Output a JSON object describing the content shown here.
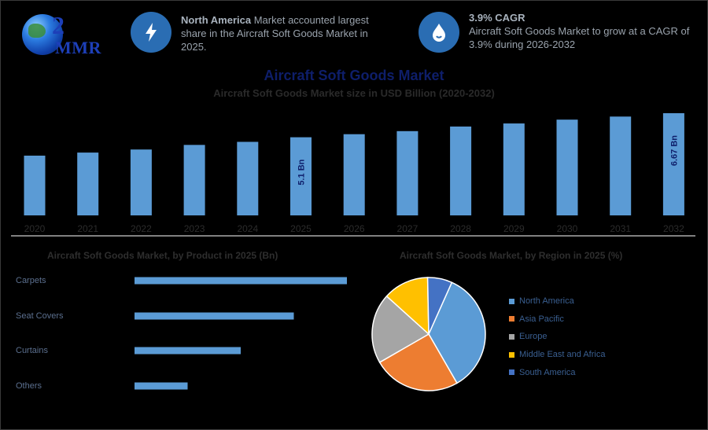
{
  "logo": {
    "text": "MMR",
    "mark": "2"
  },
  "info_cards": [
    {
      "icon": "lightning-icon",
      "highlight": "North America",
      "text": " Market accounted largest share in the Aircraft Soft Goods Market in 2025."
    },
    {
      "icon": "growth-drop-icon",
      "highlight": "3.9% CAGR",
      "text": "Aircraft Soft Goods Market to grow at a CAGR of 3.9% during 2026-2032"
    }
  ],
  "colors": {
    "bar": "#5b9bd5",
    "icon_circle": "#2a6db3",
    "title": "#0e1e6a",
    "axis": "#ffffff"
  },
  "chart_data": [
    {
      "type": "bar",
      "title": "Aircraft Soft Goods Market",
      "subtitle": "Aircraft Soft Goods Market size in USD Billion (2020-2032)",
      "categories": [
        "2020",
        "2021",
        "2022",
        "2023",
        "2024",
        "2025",
        "2026",
        "2027",
        "2028",
        "2029",
        "2030",
        "2031",
        "2032"
      ],
      "values": [
        3.9,
        4.1,
        4.3,
        4.6,
        4.8,
        5.1,
        5.3,
        5.5,
        5.8,
        6.0,
        6.25,
        6.45,
        6.67
      ],
      "data_labels": {
        "5": "5.1 Bn",
        "12": "6.67 Bn"
      },
      "ylim": [
        0,
        6.67
      ],
      "grid": false
    },
    {
      "type": "bar",
      "orientation": "horizontal",
      "title": "Aircraft Soft Goods Market, by Product in 2025 (Bn)",
      "categories": [
        "Carpets",
        "Seat Covers",
        "Curtains",
        "Others"
      ],
      "values": [
        2.0,
        1.5,
        1.0,
        0.5
      ],
      "xlim": [
        0,
        2.0
      ]
    },
    {
      "type": "pie",
      "title": "Aircraft Soft Goods Market, by Region in 2025 (%)",
      "labels": [
        "North America",
        "Asia Pacific",
        "Europe",
        "Middle East and Africa",
        "South America"
      ],
      "values": [
        35,
        25,
        20,
        13,
        7
      ],
      "colors": [
        "#5b9bd5",
        "#ed7d31",
        "#a5a5a5",
        "#ffc000",
        "#4472c4"
      ],
      "legend_position": "right"
    }
  ]
}
